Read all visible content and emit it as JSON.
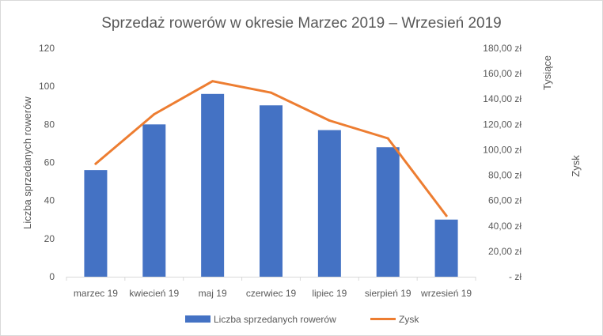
{
  "chart_data": {
    "type": "bar",
    "title": "Sprzedaż rowerów w okresie Marzec 2019 – Wrzesień 2019",
    "categories": [
      "marzec 19",
      "kwiecień 19",
      "maj 19",
      "czerwiec 19",
      "lipiec 19",
      "sierpień 19",
      "wrzesień 19"
    ],
    "series": [
      {
        "name": "Liczba sprzedanych rowerów",
        "type": "bar",
        "axis": "left",
        "color": "#4472C4",
        "values": [
          56,
          80,
          96,
          90,
          77,
          68,
          30
        ]
      },
      {
        "name": "Zysk",
        "type": "line",
        "axis": "right",
        "color": "#ED7D31",
        "values": [
          89,
          128,
          154,
          145,
          123,
          109,
          48
        ]
      }
    ],
    "y_left": {
      "label": "Liczba sprzedanych rowerów",
      "ylim": [
        0,
        120
      ],
      "ticks": [
        0,
        20,
        40,
        60,
        80,
        100,
        120
      ],
      "tick_labels": [
        "0",
        "20",
        "40",
        "60",
        "80",
        "100",
        "120"
      ]
    },
    "y_right": {
      "label": "Zysk",
      "units_label": "Tysiące",
      "ylim": [
        0,
        180
      ],
      "ticks": [
        0,
        20,
        40,
        60,
        80,
        100,
        120,
        140,
        160,
        180
      ],
      "tick_labels": [
        "-   zł",
        "20,00 zł",
        "40,00 zł",
        "60,00 zł",
        "80,00 zł",
        "100,00 zł",
        "120,00 zł",
        "140,00 zł",
        "160,00 zł",
        "180,00 zł"
      ]
    },
    "grid": false,
    "legend_position": "bottom"
  }
}
